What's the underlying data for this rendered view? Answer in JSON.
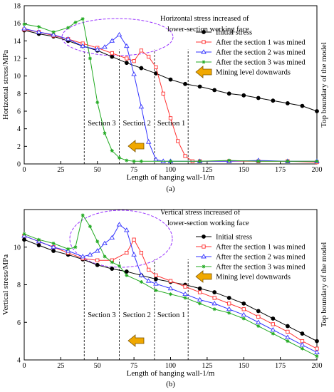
{
  "chart_data": [
    {
      "type": "line",
      "panel_label": "(a)",
      "xlabel": "Length of hanging wall-1/m",
      "ylabel": "Horizontal stress/MPa",
      "right_label": "Top boundary of the model",
      "xlim": [
        0,
        200
      ],
      "ylim": [
        0,
        18
      ],
      "xticks": [
        0,
        25,
        50,
        75,
        100,
        125,
        150,
        175,
        200
      ],
      "yticks": [
        0,
        2,
        4,
        6,
        8,
        10,
        12,
        14,
        16,
        18
      ],
      "annotation": [
        "Horizontal stress increased of",
        "lower-section working face"
      ],
      "mining_label": "Mining level downwards",
      "sections": [
        {
          "label": "Section 3",
          "x_start": 41,
          "x_end": 65
        },
        {
          "label": "Section 2",
          "x_start": 65,
          "x_end": 89
        },
        {
          "label": "Section 1",
          "x_start": 89,
          "x_end": 112
        }
      ],
      "series": [
        {
          "name": "Initial stress",
          "color": "#000000",
          "marker": "circle",
          "x": [
            0,
            10,
            20,
            30,
            40,
            50,
            60,
            70,
            80,
            90,
            100,
            110,
            120,
            130,
            140,
            150,
            160,
            170,
            180,
            190,
            200
          ],
          "y": [
            15.2,
            14.8,
            14.5,
            14.0,
            13.4,
            12.9,
            12.2,
            11.5,
            10.9,
            10.3,
            9.6,
            9.1,
            8.8,
            8.4,
            8.0,
            7.8,
            7.5,
            7.2,
            6.9,
            6.6,
            6.0
          ]
        },
        {
          "name": "After the section 1 was mined",
          "color": "#ff3333",
          "marker": "square",
          "x": [
            0,
            10,
            20,
            30,
            40,
            50,
            60,
            70,
            75,
            80,
            85,
            90,
            95,
            100,
            105,
            110,
            115,
            120,
            140,
            160,
            180,
            200
          ],
          "y": [
            15.3,
            15.0,
            14.6,
            14.2,
            13.7,
            13.2,
            12.6,
            12.0,
            11.7,
            12.9,
            12.2,
            11.0,
            8.0,
            5.2,
            2.6,
            0.9,
            0.3,
            0.3,
            0.3,
            0.3,
            0.3,
            0.2
          ]
        },
        {
          "name": "After the section 2 was mined",
          "color": "#3333ff",
          "marker": "triangle",
          "x": [
            0,
            10,
            20,
            30,
            40,
            50,
            55,
            60,
            65,
            70,
            75,
            80,
            85,
            90,
            95,
            100,
            120,
            140,
            160,
            180,
            200
          ],
          "y": [
            15.4,
            15.0,
            14.7,
            14.2,
            13.4,
            13.0,
            13.3,
            14.0,
            14.7,
            13.4,
            10.2,
            6.5,
            2.5,
            0.5,
            0.3,
            0.3,
            0.3,
            0.3,
            0.4,
            0.3,
            0.3
          ]
        },
        {
          "name": "After the section 3 was mined",
          "color": "#22aa22",
          "marker": "star",
          "x": [
            0,
            10,
            20,
            30,
            35,
            40,
            45,
            50,
            55,
            60,
            65,
            70,
            75,
            80,
            100,
            120,
            140,
            160,
            180,
            200
          ],
          "y": [
            15.9,
            15.6,
            15.0,
            15.5,
            16.1,
            16.5,
            12.0,
            7.0,
            3.5,
            1.5,
            0.7,
            0.4,
            0.3,
            0.3,
            0.3,
            0.3,
            0.4,
            0.3,
            0.3,
            0.3
          ]
        }
      ]
    },
    {
      "type": "line",
      "panel_label": "(b)",
      "xlabel": "Length of hanging wall-1/m",
      "ylabel": "Vertical stress/MPa",
      "right_label": "Top boundary of the model",
      "xlim": [
        0,
        200
      ],
      "ylim": [
        4,
        12
      ],
      "xticks": [
        0,
        25,
        50,
        75,
        100,
        125,
        150,
        175,
        200
      ],
      "yticks": [
        4,
        6,
        8,
        10
      ],
      "annotation": [
        "Vertical stress increased of",
        "lower-section working face"
      ],
      "mining_label": "Mining level downwards",
      "sections": [
        {
          "label": "Section 3",
          "x_start": 41,
          "x_end": 65
        },
        {
          "label": "Section 2",
          "x_start": 65,
          "x_end": 89
        },
        {
          "label": "Section 1",
          "x_start": 89,
          "x_end": 112
        }
      ],
      "series": [
        {
          "name": "Initial stress",
          "color": "#000000",
          "marker": "circle",
          "x": [
            0,
            10,
            20,
            30,
            40,
            50,
            60,
            70,
            80,
            90,
            100,
            110,
            120,
            130,
            140,
            150,
            160,
            170,
            180,
            190,
            200
          ],
          "y": [
            10.4,
            10.1,
            9.8,
            9.6,
            9.35,
            9.05,
            8.85,
            8.7,
            8.5,
            8.3,
            8.15,
            8.0,
            7.8,
            7.6,
            7.3,
            7.0,
            6.6,
            6.2,
            5.8,
            5.4,
            5.0
          ]
        },
        {
          "name": "After the section 1 was mined",
          "color": "#ff3333",
          "marker": "square",
          "x": [
            0,
            10,
            20,
            30,
            40,
            50,
            60,
            70,
            75,
            80,
            85,
            90,
            100,
            110,
            120,
            130,
            140,
            150,
            160,
            170,
            180,
            190,
            200
          ],
          "y": [
            10.6,
            10.3,
            10.0,
            9.7,
            9.4,
            9.3,
            9.3,
            9.7,
            10.4,
            9.7,
            8.8,
            8.5,
            8.2,
            7.9,
            7.6,
            7.3,
            7.0,
            6.7,
            6.3,
            5.9,
            5.5,
            5.0,
            4.6
          ]
        },
        {
          "name": "After the section 2 was mined",
          "color": "#3333ff",
          "marker": "triangle",
          "x": [
            0,
            10,
            20,
            30,
            40,
            45,
            50,
            55,
            60,
            65,
            70,
            75,
            80,
            85,
            90,
            100,
            110,
            120,
            130,
            140,
            150,
            160,
            170,
            180,
            190,
            200
          ],
          "y": [
            10.6,
            10.3,
            10.0,
            9.8,
            9.5,
            9.6,
            9.8,
            10.2,
            10.5,
            11.2,
            10.9,
            9.6,
            8.5,
            8.2,
            8.05,
            7.8,
            7.5,
            7.2,
            7.0,
            6.7,
            6.4,
            6.0,
            5.6,
            5.2,
            4.8,
            4.4
          ]
        },
        {
          "name": "After the section 3 was mined",
          "color": "#22aa22",
          "marker": "star",
          "x": [
            0,
            10,
            20,
            30,
            35,
            40,
            45,
            50,
            55,
            60,
            65,
            70,
            80,
            90,
            100,
            110,
            120,
            130,
            140,
            150,
            160,
            170,
            180,
            190,
            200
          ],
          "y": [
            10.7,
            10.4,
            10.2,
            9.9,
            10.0,
            11.7,
            11.1,
            10.3,
            9.5,
            9.2,
            9.0,
            8.5,
            8.15,
            7.7,
            7.5,
            7.3,
            7.0,
            6.7,
            6.5,
            6.2,
            5.8,
            5.4,
            5.0,
            4.6,
            4.2
          ]
        }
      ]
    }
  ]
}
